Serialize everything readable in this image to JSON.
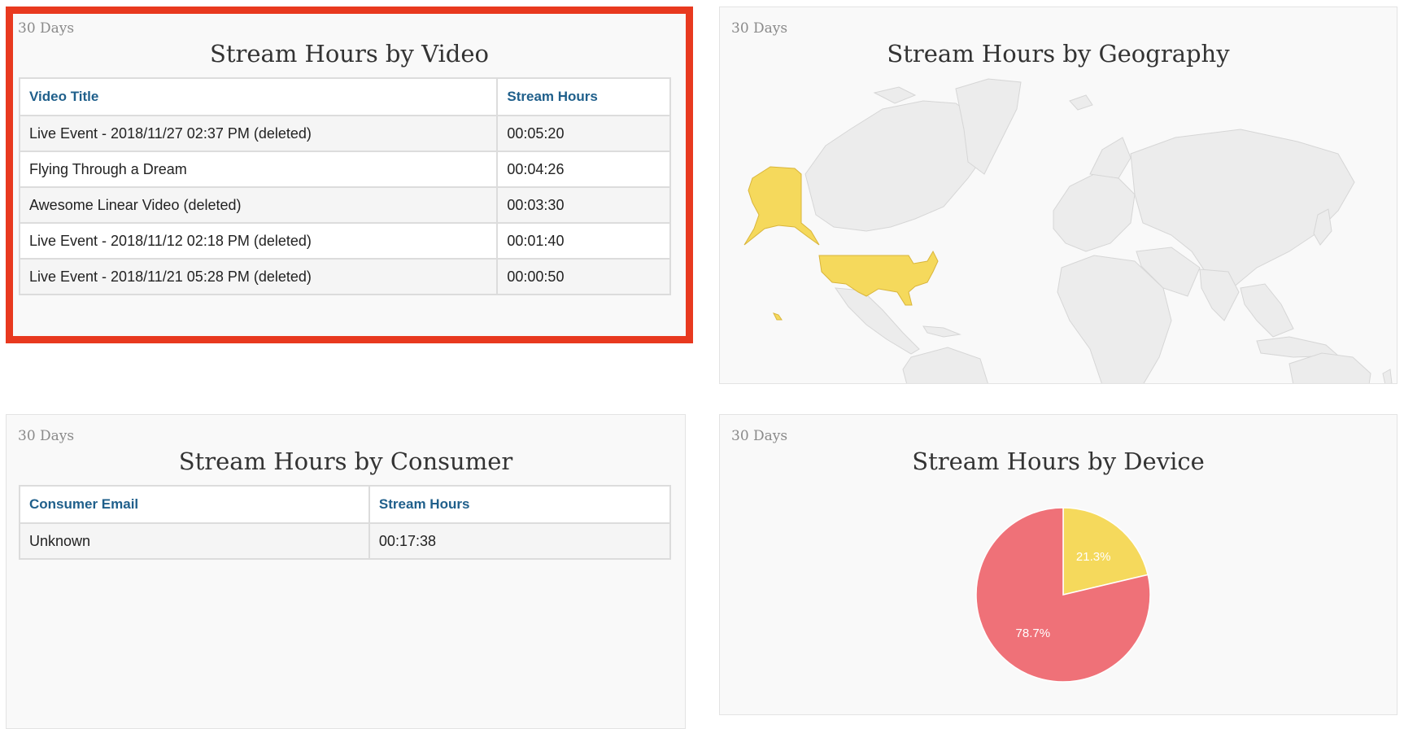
{
  "video_panel": {
    "period": "30 Days",
    "title": "Stream Hours by Video",
    "columns": [
      "Video Title",
      "Stream Hours"
    ],
    "rows": [
      {
        "title": "Live Event - 2018/11/27 02:37 PM (deleted)",
        "hours": "00:05:20"
      },
      {
        "title": "Flying Through a Dream",
        "hours": "00:04:26"
      },
      {
        "title": "Awesome Linear Video (deleted)",
        "hours": "00:03:30"
      },
      {
        "title": "Live Event - 2018/11/12 02:18 PM (deleted)",
        "hours": "00:01:40"
      },
      {
        "title": "Live Event - 2018/11/21 05:28 PM (deleted)",
        "hours": "00:00:50"
      }
    ]
  },
  "geo_panel": {
    "period": "30 Days",
    "title": "Stream Hours by Geography",
    "highlight_color": "#f5d95c",
    "land_color": "#ececec",
    "highlighted_regions": [
      "united-states",
      "alaska",
      "hawaii"
    ]
  },
  "consumer_panel": {
    "period": "30 Days",
    "title": "Stream Hours by Consumer",
    "columns": [
      "Consumer Email",
      "Stream Hours"
    ],
    "rows": [
      {
        "email": "Unknown",
        "hours": "00:17:38"
      }
    ]
  },
  "device_panel": {
    "period": "30 Days",
    "title": "Stream Hours by Device"
  },
  "chart_data": {
    "type": "pie",
    "title": "Stream Hours by Device",
    "slices": [
      {
        "label": "21.3%",
        "value": 21.3,
        "color": "#f5d95c"
      },
      {
        "label": "78.7%",
        "value": 78.7,
        "color": "#ef7178"
      }
    ]
  },
  "colors": {
    "highlight_border": "#e8391f",
    "header_text": "#1f5f8b"
  }
}
